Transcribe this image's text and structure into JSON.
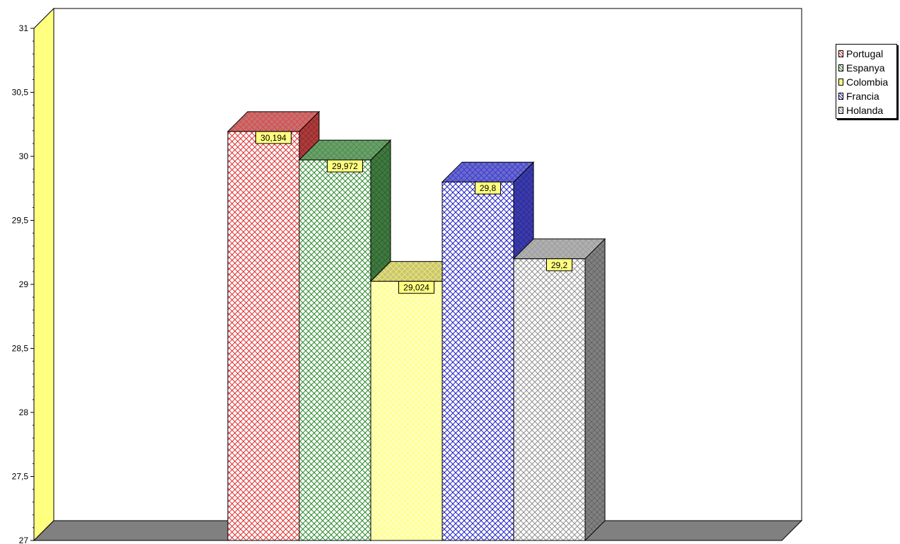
{
  "chart_data": {
    "type": "bar",
    "title": "",
    "xlabel": "",
    "ylabel": "",
    "ylim": [
      27,
      31
    ],
    "yticks": [
      "27",
      "27,5",
      "28",
      "28,5",
      "29",
      "29,5",
      "30",
      "30,5",
      "31"
    ],
    "legend_position": "top-right",
    "series": [
      {
        "name": "Portugal",
        "value": 30.194,
        "label": "30,194",
        "color": "#e03030",
        "top_color": "#c87070",
        "side_color": "#b03a3a"
      },
      {
        "name": "Espanya",
        "value": 29.972,
        "label": "29,972",
        "color": "#2a8a2a",
        "top_color": "#6f9e6f",
        "side_color": "#3e7a3e"
      },
      {
        "name": "Colombia",
        "value": 29.024,
        "label": "29,024",
        "color": "#ffff80",
        "top_color": "#c8c470",
        "side_color": "#8a8a5a"
      },
      {
        "name": "Francia",
        "value": 29.8,
        "label": "29,8",
        "color": "#2020c8",
        "top_color": "#6a6ad0",
        "side_color": "#3a3ab0"
      },
      {
        "name": "Holanda",
        "value": 29.2,
        "label": "29,2",
        "color": "#909090",
        "top_color": "#b0b0b0",
        "side_color": "#808080"
      }
    ],
    "grid": false
  }
}
